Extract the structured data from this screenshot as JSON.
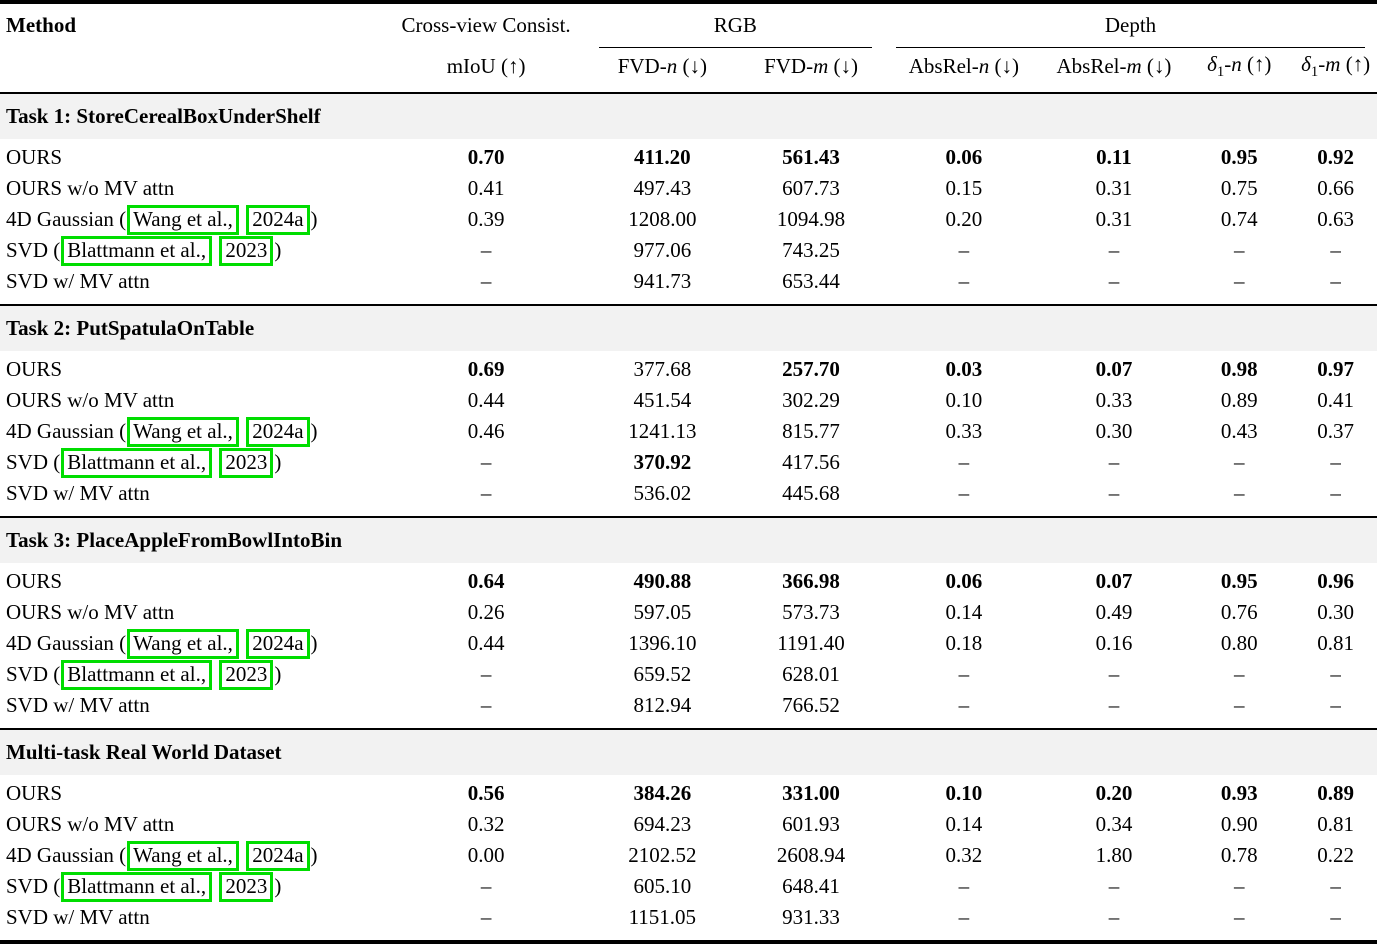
{
  "header": {
    "method": "Method",
    "groups": [
      {
        "label": "Cross-view Consist."
      },
      {
        "label": "RGB"
      },
      {
        "label": "Depth"
      }
    ],
    "subcols": [
      {
        "up1": "mIoU",
        "up2": " (↑)"
      },
      {
        "up1": "FVD-",
        "it1": "n",
        "up2": " (↓)"
      },
      {
        "up1": "FVD-",
        "it1": "m",
        "up2": " (↓)"
      },
      {
        "up1": "AbsRel-",
        "it1": "n",
        "up2": " (↓)"
      },
      {
        "up1": "AbsRel-",
        "it1": "m",
        "up2": " (↓)"
      },
      {
        "it0": "δ",
        "sub": "1",
        "up1": "-",
        "it1": "n",
        "up2": " (↑)"
      },
      {
        "it0": "δ",
        "sub": "1",
        "up1": "-",
        "it1": "m",
        "up2": " (↑)"
      }
    ]
  },
  "sections": [
    {
      "title": "Task 1: StoreCerealBoxUnderShelf",
      "rows": [
        {
          "method": {
            "pre": "OURS"
          },
          "values": [
            "0.70",
            "411.20",
            "561.43",
            "0.06",
            "0.11",
            "0.95",
            "0.92"
          ],
          "bold": [
            true,
            true,
            true,
            true,
            true,
            true,
            true
          ]
        },
        {
          "method": {
            "pre": "OURS w/o MV attn"
          },
          "values": [
            "0.41",
            "497.43",
            "607.73",
            "0.15",
            "0.31",
            "0.75",
            "0.66"
          ]
        },
        {
          "method": {
            "pre": "4D Gaussian (",
            "cite1": "Wang et al.,",
            "mid": " ",
            "cite2": "2024a",
            "post": ")"
          },
          "values": [
            "0.39",
            "1208.00",
            "1094.98",
            "0.20",
            "0.31",
            "0.74",
            "0.63"
          ]
        },
        {
          "method": {
            "pre": "SVD (",
            "cite1": "Blattmann et al.,",
            "mid": " ",
            "cite2": "2023",
            "post": ")"
          },
          "values": [
            "–",
            "977.06",
            "743.25",
            "–",
            "–",
            "–",
            "–"
          ]
        },
        {
          "method": {
            "pre": "SVD w/ MV attn"
          },
          "values": [
            "–",
            "941.73",
            "653.44",
            "–",
            "–",
            "–",
            "–"
          ]
        }
      ]
    },
    {
      "title": "Task 2: PutSpatulaOnTable",
      "rows": [
        {
          "method": {
            "pre": "OURS"
          },
          "values": [
            "0.69",
            "377.68",
            "257.70",
            "0.03",
            "0.07",
            "0.98",
            "0.97"
          ],
          "bold": [
            true,
            false,
            true,
            true,
            true,
            true,
            true
          ]
        },
        {
          "method": {
            "pre": "OURS w/o MV attn"
          },
          "values": [
            "0.44",
            "451.54",
            "302.29",
            "0.10",
            "0.33",
            "0.89",
            "0.41"
          ]
        },
        {
          "method": {
            "pre": "4D Gaussian (",
            "cite1": "Wang et al.,",
            "mid": " ",
            "cite2": "2024a",
            "post": ")"
          },
          "values": [
            "0.46",
            "1241.13",
            "815.77",
            "0.33",
            "0.30",
            "0.43",
            "0.37"
          ]
        },
        {
          "method": {
            "pre": "SVD (",
            "cite1": "Blattmann et al.,",
            "mid": " ",
            "cite2": "2023",
            "post": ")"
          },
          "values": [
            "–",
            "370.92",
            "417.56",
            "–",
            "–",
            "–",
            "–"
          ],
          "bold": [
            false,
            true,
            false,
            false,
            false,
            false,
            false
          ]
        },
        {
          "method": {
            "pre": "SVD w/ MV attn"
          },
          "values": [
            "–",
            "536.02",
            "445.68",
            "–",
            "–",
            "–",
            "–"
          ]
        }
      ]
    },
    {
      "title": "Task 3: PlaceAppleFromBowlIntoBin",
      "rows": [
        {
          "method": {
            "pre": "OURS"
          },
          "values": [
            "0.64",
            "490.88",
            "366.98",
            "0.06",
            "0.07",
            "0.95",
            "0.96"
          ],
          "bold": [
            true,
            true,
            true,
            true,
            true,
            true,
            true
          ]
        },
        {
          "method": {
            "pre": "OURS w/o MV attn"
          },
          "values": [
            "0.26",
            "597.05",
            "573.73",
            "0.14",
            "0.49",
            "0.76",
            "0.30"
          ]
        },
        {
          "method": {
            "pre": "4D Gaussian (",
            "cite1": "Wang et al.,",
            "mid": " ",
            "cite2": "2024a",
            "post": ")"
          },
          "values": [
            "0.44",
            "1396.10",
            "1191.40",
            "0.18",
            "0.16",
            "0.80",
            "0.81"
          ]
        },
        {
          "method": {
            "pre": "SVD (",
            "cite1": "Blattmann et al.,",
            "mid": " ",
            "cite2": "2023",
            "post": ")"
          },
          "values": [
            "–",
            "659.52",
            "628.01",
            "–",
            "–",
            "–",
            "–"
          ]
        },
        {
          "method": {
            "pre": "SVD w/ MV attn"
          },
          "values": [
            "–",
            "812.94",
            "766.52",
            "–",
            "–",
            "–",
            "–"
          ]
        }
      ]
    },
    {
      "title": "Multi-task Real World Dataset",
      "rows": [
        {
          "method": {
            "pre": "OURS"
          },
          "values": [
            "0.56",
            "384.26",
            "331.00",
            "0.10",
            "0.20",
            "0.93",
            "0.89"
          ],
          "bold": [
            true,
            true,
            true,
            true,
            true,
            true,
            true
          ]
        },
        {
          "method": {
            "pre": "OURS w/o MV attn"
          },
          "values": [
            "0.32",
            "694.23",
            "601.93",
            "0.14",
            "0.34",
            "0.90",
            "0.81"
          ]
        },
        {
          "method": {
            "pre": "4D Gaussian (",
            "cite1": "Wang et al.,",
            "mid": " ",
            "cite2": "2024a",
            "post": ")"
          },
          "values": [
            "0.00",
            "2102.52",
            "2608.94",
            "0.32",
            "1.80",
            "0.78",
            "0.22"
          ]
        },
        {
          "method": {
            "pre": "SVD (",
            "cite1": "Blattmann et al.,",
            "mid": " ",
            "cite2": "2023",
            "post": ")"
          },
          "values": [
            "–",
            "605.10",
            "648.41",
            "–",
            "–",
            "–",
            "–"
          ]
        },
        {
          "method": {
            "pre": "SVD w/ MV attn"
          },
          "values": [
            "–",
            "1151.05",
            "931.33",
            "–",
            "–",
            "–",
            "–"
          ]
        }
      ]
    }
  ],
  "colors": {
    "citation_box": "#00dd00",
    "section_bg": "#f2f2f2"
  }
}
